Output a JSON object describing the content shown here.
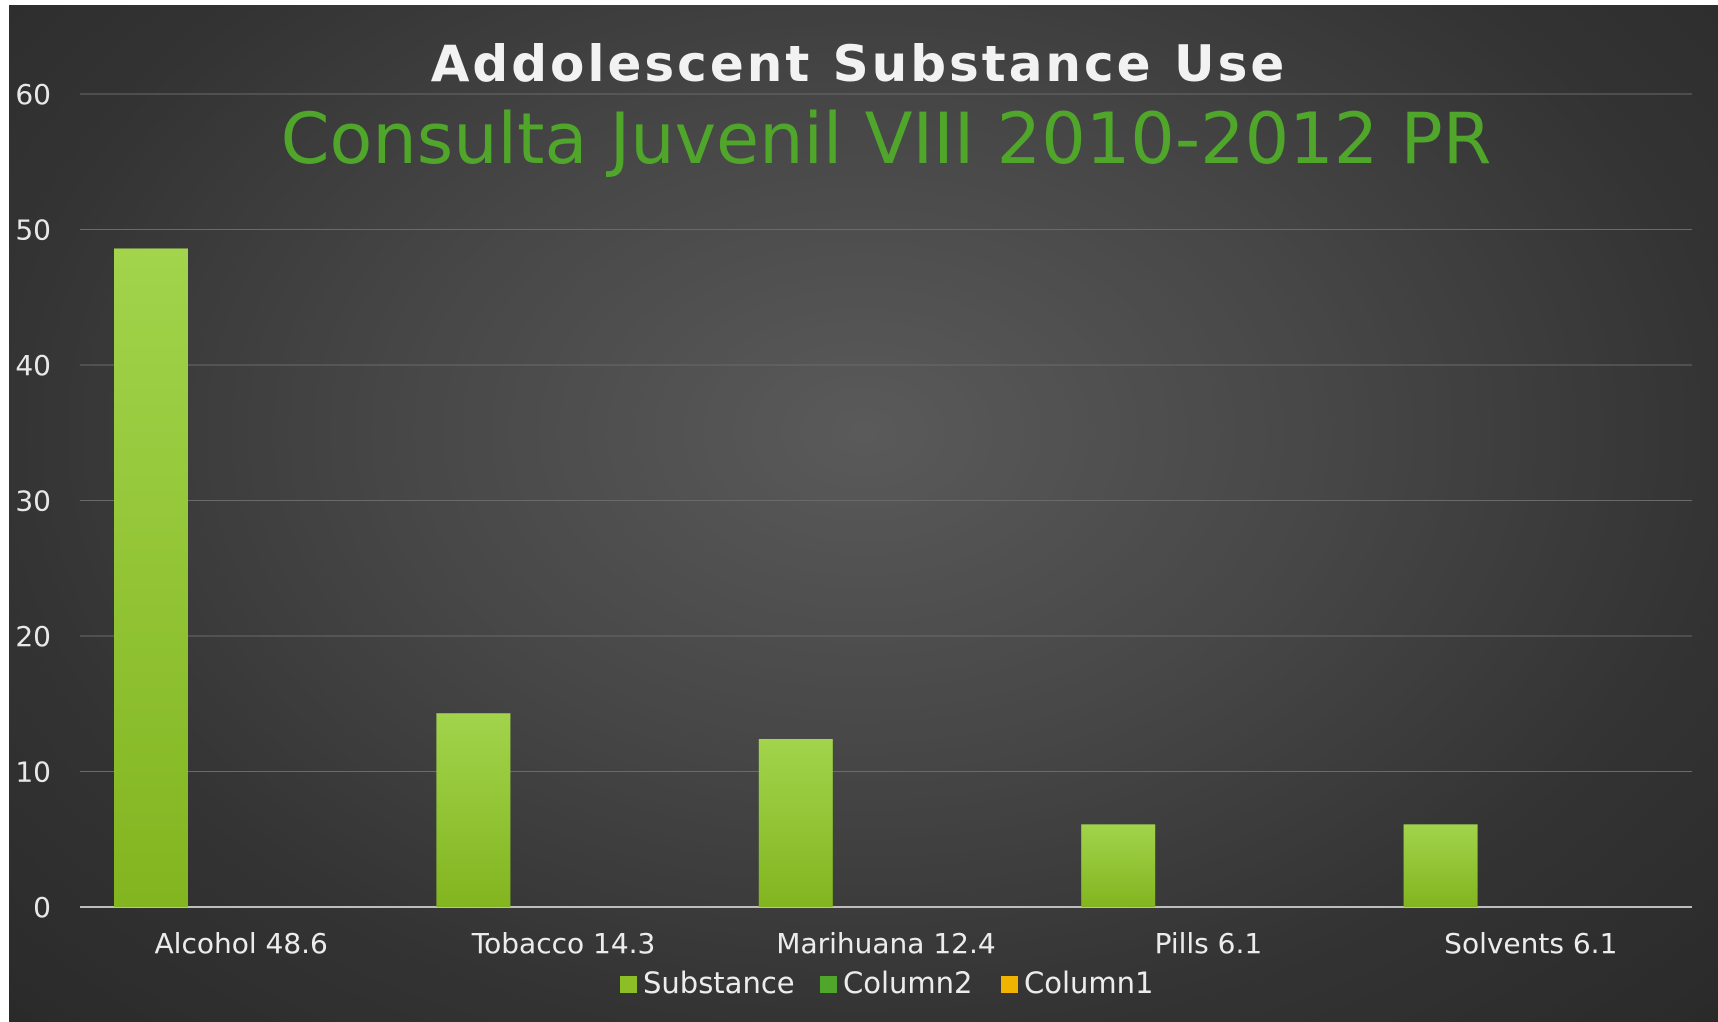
{
  "chart_data": {
    "type": "bar",
    "title": "Addolescent Substance Use",
    "subtitle": "Consulta Juvenil VIII 2010-2012 PR",
    "categories": [
      "Alcohol 48.6",
      "Tobacco 14.3",
      "Marihuana 12.4",
      "Pills 6.1",
      "Solvents 6.1"
    ],
    "series": [
      {
        "name": "Substance",
        "values": [
          48.6,
          14.3,
          12.4,
          6.1,
          6.1
        ],
        "color": "#8cbf26"
      },
      {
        "name": "Column2",
        "values": [
          null,
          null,
          null,
          null,
          null
        ],
        "color": "#4fa62a"
      },
      {
        "name": "Column1",
        "values": [
          null,
          null,
          null,
          null,
          null
        ],
        "color": "#f0b400"
      }
    ],
    "y_ticks": [
      "0",
      "10",
      "20",
      "30",
      "40",
      "50",
      "60"
    ],
    "ylim": [
      0,
      60
    ],
    "grid": true,
    "legend_position": "bottom"
  }
}
